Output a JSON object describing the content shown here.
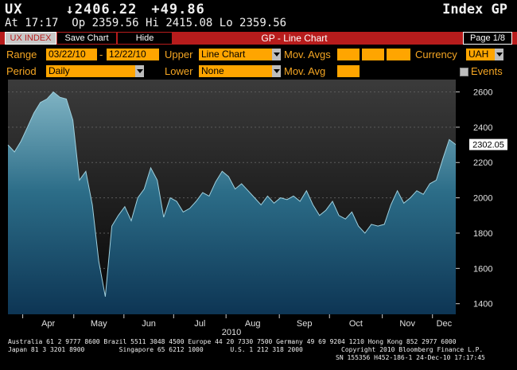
{
  "header": {
    "ticker": "UX",
    "last_price": "↓2406.22",
    "change": "+49.86",
    "function": "Index GP",
    "time_label": "At 17:17",
    "open": "Op 2359.56",
    "high": "Hi 2415.08",
    "low": "Lo 2359.56"
  },
  "toolbar": {
    "security": "UX INDEX",
    "save": "Save Chart",
    "hide": "Hide",
    "title": "GP - Line Chart",
    "page": "Page 1/8"
  },
  "controls": {
    "range_label": "Range",
    "range_start": "03/22/10",
    "range_sep": "-",
    "range_end": "12/22/10",
    "upper_label": "Upper",
    "upper_value": "Line Chart",
    "mov_avgs_label": "Mov. Avgs",
    "currency_label": "Currency",
    "currency_value": "UAH",
    "period_label": "Period",
    "period_value": "Daily",
    "lower_label": "Lower",
    "lower_value": "None",
    "mov_avg_label": "Mov. Avg",
    "events_label": "Events"
  },
  "chart_data": {
    "type": "area",
    "title": "",
    "xlabel": "2010",
    "ylabel": "",
    "x_ticks": [
      "Apr",
      "May",
      "Jun",
      "Jul",
      "Aug",
      "Sep",
      "Oct",
      "Nov",
      "Dec"
    ],
    "y_ticks": [
      1400,
      1600,
      1800,
      2000,
      2200,
      2400,
      2600
    ],
    "ylim": [
      1340,
      2670
    ],
    "last_value_label": "2302.05",
    "series": [
      {
        "x": [
          "03/22",
          "03/26",
          "03/30",
          "04/03",
          "04/07",
          "04/11",
          "04/15",
          "04/19",
          "04/23",
          "04/27",
          "05/01",
          "05/05",
          "05/09",
          "05/13",
          "05/17",
          "05/21",
          "05/25",
          "05/29",
          "06/02",
          "06/06",
          "06/10",
          "06/14",
          "06/18",
          "06/22",
          "06/26",
          "06/30",
          "07/04",
          "07/08",
          "07/12",
          "07/16",
          "07/20",
          "07/24",
          "07/28",
          "08/01",
          "08/05",
          "08/09",
          "08/13",
          "08/17",
          "08/21",
          "08/25",
          "08/29",
          "09/02",
          "09/06",
          "09/10",
          "09/14",
          "09/18",
          "09/22",
          "09/26",
          "09/30",
          "10/04",
          "10/08",
          "10/12",
          "10/16",
          "10/20",
          "10/24",
          "10/28",
          "11/01",
          "11/05",
          "11/09",
          "11/13",
          "11/17",
          "11/21",
          "11/25",
          "11/29",
          "12/03",
          "12/07",
          "12/11",
          "12/15",
          "12/19",
          "12/22"
        ],
        "values": [
          2300,
          2260,
          2320,
          2400,
          2480,
          2540,
          2560,
          2600,
          2570,
          2560,
          2440,
          2100,
          2150,
          1960,
          1640,
          1440,
          1840,
          1900,
          1950,
          1870,
          2000,
          2050,
          2170,
          2100,
          1890,
          2000,
          1980,
          1920,
          1940,
          1980,
          2030,
          2010,
          2090,
          2150,
          2120,
          2050,
          2080,
          2040,
          2000,
          1960,
          2010,
          1970,
          2000,
          1990,
          2010,
          1980,
          2040,
          1960,
          1900,
          1930,
          1980,
          1900,
          1880,
          1920,
          1840,
          1800,
          1850,
          1840,
          1850,
          1960,
          2040,
          1970,
          2000,
          2040,
          2020,
          2080,
          2100,
          2220,
          2330,
          2302.05
        ]
      }
    ]
  },
  "footer": {
    "line1": "Australia 61 2 9777 8600 Brazil 5511 3048 4500 Europe 44 20 7330 7500 Germany 49 69 9204 1210 Hong Kong 852 2977 6000",
    "line2": "Japan 81 3 3201 8900         Singapore 65 6212 1000       U.S. 1 212 318 2000          Copyright 2010 Bloomberg Finance L.P.",
    "line3": "SN 155356 H452-186-1 24-Dec-10 17:17:45"
  },
  "colors": {
    "toolbar_red": "#b71c1c",
    "label_orange": "#f5a623",
    "field_orange": "#ffa500",
    "chart_fill_top": "#7fb3c3",
    "chart_fill_bottom": "#0d3554"
  }
}
